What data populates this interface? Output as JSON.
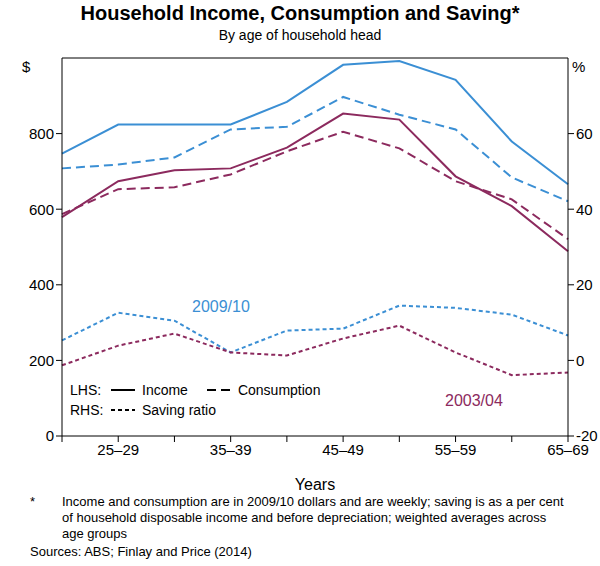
{
  "chart_data": {
    "type": "line",
    "title": "Household Income, Consumption and Saving*",
    "subtitle": "By age of household head",
    "xlabel": "Years",
    "ylabel": "$",
    "y2label": "%",
    "categories": [
      null,
      "25–29",
      null,
      "35–39",
      null,
      "45–49",
      null,
      "55–59",
      null,
      "65–69"
    ],
    "ylim": [
      0,
      1000
    ],
    "yticks": [
      0,
      200,
      400,
      600,
      800
    ],
    "y2lim": [
      -20,
      80
    ],
    "y2ticks": [
      -20,
      0,
      20,
      40,
      60
    ],
    "grid": false,
    "series": [
      {
        "name": "Income",
        "group": "2009/10",
        "color": "#3b8fd4",
        "line_style": "solid",
        "values": [
          747,
          824,
          824,
          824,
          884,
          982,
          992,
          942,
          779,
          666
        ]
      },
      {
        "name": "Consumption",
        "group": "2009/10",
        "color": "#3b8fd4",
        "line_style": "dashed",
        "values": [
          708,
          718,
          737,
          811,
          818,
          897,
          850,
          811,
          684,
          621
        ]
      },
      {
        "name": "Income",
        "group": "2003/04",
        "color": "#8c2a5e",
        "line_style": "solid",
        "values": [
          579,
          674,
          703,
          708,
          763,
          853,
          837,
          687,
          608,
          489
        ]
      },
      {
        "name": "Consumption",
        "group": "2003/04",
        "color": "#8c2a5e",
        "line_style": "dashed",
        "values": [
          587,
          653,
          658,
          692,
          753,
          805,
          761,
          674,
          626,
          521
        ]
      },
      {
        "name": "Saving ratio",
        "group": "2009/10",
        "color": "#3b8fd4",
        "line_style": "dotted",
        "axis": "y2",
        "values": [
          5.3,
          12.6,
          10.5,
          2.1,
          7.9,
          8.4,
          14.5,
          13.9,
          12.1,
          6.6
        ]
      },
      {
        "name": "Saving ratio",
        "group": "2003/04",
        "color": "#8c2a5e",
        "line_style": "dotted",
        "axis": "y2",
        "values": [
          -1.3,
          3.9,
          7.1,
          2.1,
          1.3,
          5.8,
          9.2,
          2.1,
          -3.9,
          -3.2
        ]
      }
    ],
    "legend_groups": [
      {
        "label": "LHS:",
        "series": [
          "Income",
          "Consumption"
        ]
      },
      {
        "label": "RHS:",
        "series": [
          "Saving ratio"
        ]
      }
    ],
    "annotations": [
      {
        "text": "2009/10",
        "color": "#3b8fd4"
      },
      {
        "text": "2003/04",
        "color": "#8c2a5e"
      }
    ],
    "footnote": {
      "marker": "*",
      "text": "Income and consumption are in 2009/10 dollars and are weekly; saving is as a per cent of household disposable income and before depreciation; weighted averages across age groups"
    },
    "source": "Sources: ABS; Finlay and Price (2014)"
  }
}
